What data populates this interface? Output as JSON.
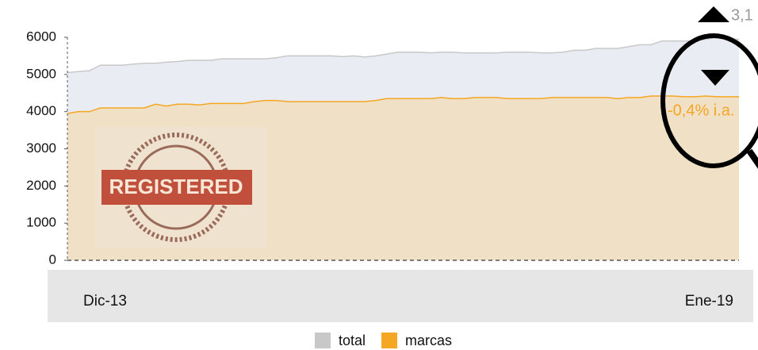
{
  "chart_data": {
    "type": "area",
    "categories": [
      "Dic-13",
      null,
      null,
      null,
      null,
      null,
      null,
      null,
      null,
      null,
      null,
      null,
      null,
      null,
      null,
      null,
      null,
      null,
      null,
      null,
      null,
      null,
      null,
      null,
      null,
      null,
      null,
      null,
      null,
      null,
      null,
      null,
      null,
      null,
      null,
      null,
      null,
      null,
      null,
      null,
      null,
      null,
      null,
      null,
      null,
      null,
      null,
      null,
      null,
      null,
      null,
      null,
      null,
      null,
      null,
      null,
      null,
      null,
      null,
      null,
      null,
      "Ene-19"
    ],
    "series": [
      {
        "name": "total",
        "color": "#c8c8c8",
        "fill": "#e9edf3",
        "values": [
          5050,
          5080,
          5100,
          5250,
          5250,
          5250,
          5280,
          5300,
          5300,
          5330,
          5350,
          5380,
          5380,
          5380,
          5420,
          5420,
          5420,
          5420,
          5420,
          5450,
          5500,
          5500,
          5500,
          5500,
          5500,
          5480,
          5500,
          5470,
          5500,
          5550,
          5600,
          5600,
          5600,
          5580,
          5600,
          5600,
          5580,
          5580,
          5580,
          5580,
          5600,
          5600,
          5600,
          5580,
          5580,
          5600,
          5650,
          5650,
          5700,
          5700,
          5700,
          5750,
          5800,
          5800,
          5900,
          5900,
          5900,
          5900,
          5950,
          6000,
          5950,
          5950
        ]
      },
      {
        "name": "marcas",
        "color": "#f5a623",
        "fill": "#efe0c6",
        "values": [
          3950,
          4000,
          4000,
          4100,
          4100,
          4100,
          4100,
          4100,
          4200,
          4150,
          4200,
          4200,
          4180,
          4220,
          4220,
          4220,
          4220,
          4270,
          4300,
          4300,
          4270,
          4270,
          4270,
          4270,
          4270,
          4270,
          4270,
          4270,
          4300,
          4350,
          4350,
          4350,
          4350,
          4350,
          4380,
          4350,
          4350,
          4380,
          4380,
          4380,
          4350,
          4350,
          4350,
          4350,
          4380,
          4380,
          4380,
          4380,
          4380,
          4380,
          4350,
          4380,
          4380,
          4420,
          4420,
          4420,
          4400,
          4400,
          4420,
          4400,
          4400,
          4400
        ]
      }
    ],
    "ylim": [
      0,
      6000
    ],
    "yticks": [
      0,
      1000,
      2000,
      3000,
      4000,
      5000,
      6000
    ],
    "annotations": [
      "3,1",
      "-0,4% i.a."
    ],
    "stamp_text": "REGISTERED"
  }
}
